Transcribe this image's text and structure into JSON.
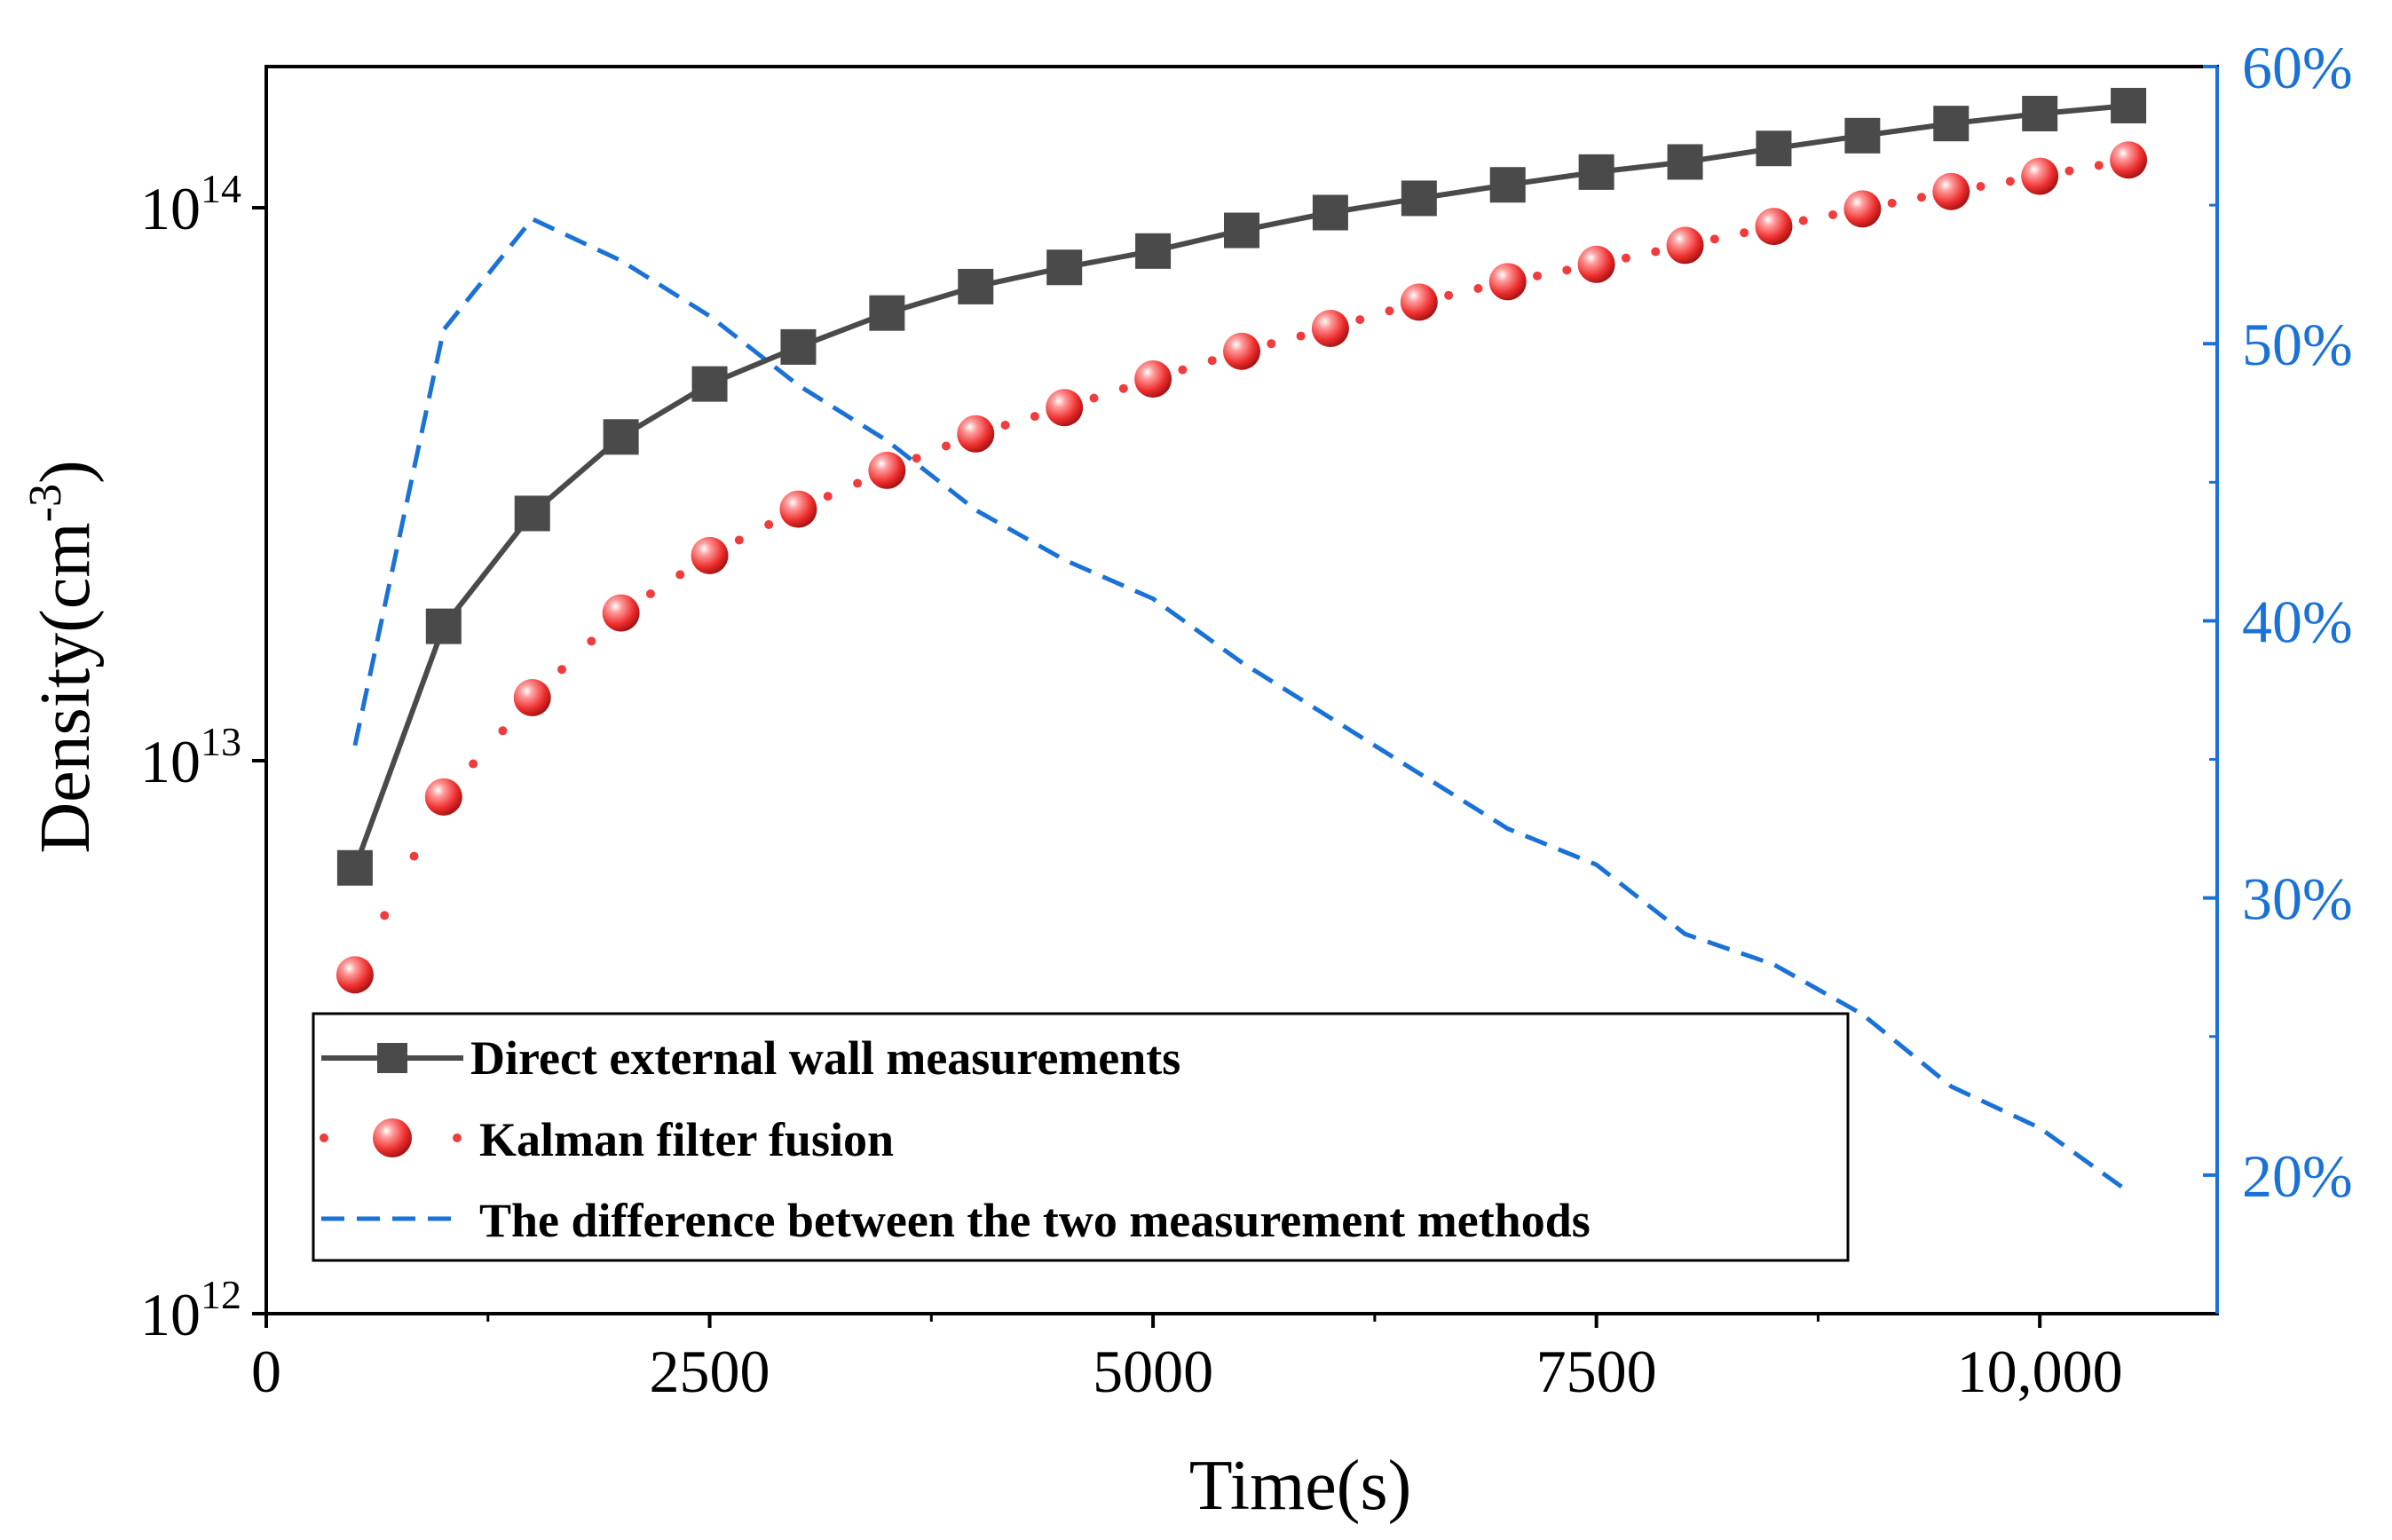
{
  "chart_data": {
    "type": "line",
    "title": "",
    "xlabel": "Time(s)",
    "ylabel": "Density(cm",
    "ylabel_superscript": "-3",
    "ylabel_close": ")",
    "xlim": [
      0,
      11000
    ],
    "ylim": [
      1000000000000.0,
      180000000000000.0
    ],
    "yscale": "log",
    "y2lim": [
      15,
      60
    ],
    "x_ticks": [
      {
        "value": 0,
        "label": "0"
      },
      {
        "value": 2500,
        "label": "2500"
      },
      {
        "value": 5000,
        "label": "5000"
      },
      {
        "value": 7500,
        "label": "7500"
      },
      {
        "value": 10000,
        "label": "10,000"
      }
    ],
    "y_ticks": [
      {
        "value": 1000000000000.0,
        "base": "10",
        "exp": "12"
      },
      {
        "value": 10000000000000.0,
        "base": "10",
        "exp": "13"
      },
      {
        "value": 100000000000000.0,
        "base": "10",
        "exp": "14"
      }
    ],
    "y2_ticks": [
      {
        "value": 20,
        "label": "20%"
      },
      {
        "value": 30,
        "label": "30%"
      },
      {
        "value": 40,
        "label": "40%"
      },
      {
        "value": 50,
        "label": "50%"
      },
      {
        "value": 60,
        "label": "60%"
      }
    ],
    "x": [
      500,
      1000,
      1500,
      2000,
      2500,
      3000,
      3500,
      4000,
      4500,
      5000,
      5500,
      6000,
      6500,
      7000,
      7500,
      8000,
      8500,
      9000,
      9500,
      10000,
      10500
    ],
    "series": [
      {
        "name": "Direct external wall measurements",
        "axis": "left",
        "style": "line-square",
        "color": "#4a4a4a",
        "values": [
          6400000000000.0,
          17500000000000.0,
          28000000000000.0,
          38500000000000.0,
          48000000000000.0,
          56000000000000.0,
          64500000000000.0,
          72000000000000.0,
          78000000000000.0,
          83500000000000.0,
          91000000000000.0,
          98000000000000.0,
          104000000000000.0,
          110000000000000.0,
          116000000000000.0,
          121000000000000.0,
          128000000000000.0,
          135000000000000.0,
          142000000000000.0,
          148000000000000.0,
          153000000000000.0
        ]
      },
      {
        "name": "Kalman filter fusion",
        "axis": "left",
        "style": "dot-sphere",
        "color": "#f03c3c",
        "values": [
          4100000000000.0,
          8600000000000.0,
          13000000000000.0,
          18500000000000.0,
          23500000000000.0,
          28500000000000.0,
          33500000000000.0,
          39000000000000.0,
          43500000000000.0,
          49000000000000.0,
          55000000000000.0,
          60500000000000.0,
          67500000000000.0,
          73500000000000.0,
          79000000000000.0,
          85500000000000.0,
          92500000000000.0,
          99500000000000.0,
          107000000000000.0,
          114000000000000.0,
          122000000000000.0
        ]
      },
      {
        "name": "The difference between the two measurement methods",
        "axis": "right",
        "style": "dash",
        "color": "#1a72d6",
        "x": [
          500,
          1000,
          1500,
          2000,
          2500,
          3000,
          3500,
          4000,
          4500,
          5000,
          5500,
          6000,
          6500,
          7000,
          7500,
          8000,
          8500,
          9000,
          9500,
          10000,
          10500
        ],
        "values": [
          35.5,
          50.5,
          54.5,
          53.0,
          51.0,
          48.5,
          46.5,
          44.0,
          42.2,
          40.8,
          38.5,
          36.5,
          34.5,
          32.5,
          31.2,
          28.7,
          27.6,
          25.8,
          23.2,
          21.7,
          19.4
        ]
      }
    ],
    "legend": {
      "placement": "bottom-left",
      "entries": [
        "Direct external wall measurements",
        "Kalman filter fusion",
        "The difference between the two measurement methods"
      ]
    }
  }
}
